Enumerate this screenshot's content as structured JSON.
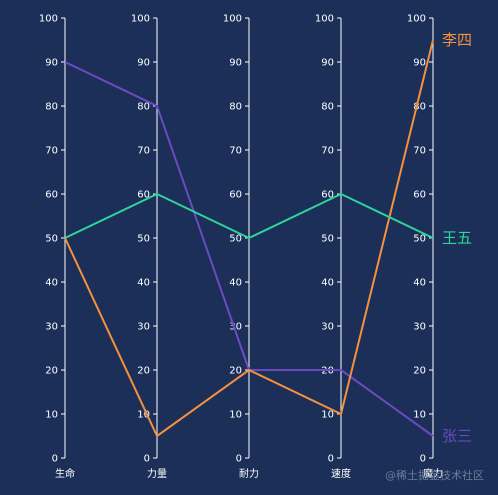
{
  "chart_data": {
    "type": "parallel",
    "axes": [
      {
        "name": "生命"
      },
      {
        "name": "力量"
      },
      {
        "name": "耐力"
      },
      {
        "name": "速度"
      },
      {
        "name": "魔力"
      }
    ],
    "ylim": [
      0,
      100
    ],
    "ticks": [
      0,
      10,
      20,
      30,
      40,
      50,
      60,
      70,
      80,
      90,
      100
    ],
    "series": [
      {
        "name": "张三",
        "values": [
          90,
          80,
          20,
          20,
          5
        ],
        "color": "#6b4bc0"
      },
      {
        "name": "李四",
        "values": [
          50,
          5,
          20,
          10,
          95
        ],
        "color": "#f5913e"
      },
      {
        "name": "王五",
        "values": [
          50,
          60,
          50,
          60,
          50
        ],
        "color": "#2fd49a"
      }
    ],
    "axis_color": "#ffffff",
    "background": "#1b2f58"
  },
  "watermark": "@稀土掘金技术社区"
}
